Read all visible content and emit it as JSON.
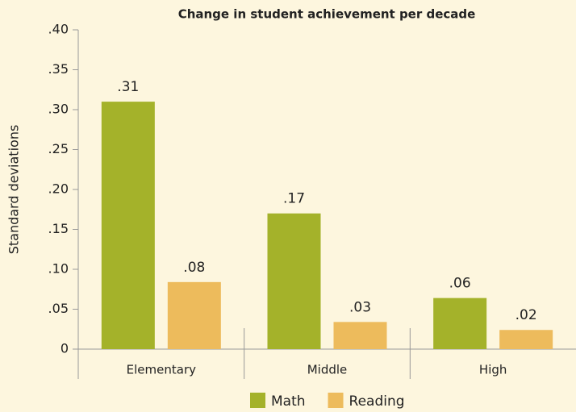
{
  "chart_data": {
    "type": "bar",
    "title": "Change in student achievement per decade",
    "y_label": "Standard deviations",
    "categories": [
      "Elementary",
      "Middle",
      "High"
    ],
    "series": [
      {
        "name": "Math",
        "color": "#a4b22a",
        "values": [
          0.31,
          0.17,
          0.064
        ],
        "value_labels": [
          ".31",
          ".17",
          ".06"
        ]
      },
      {
        "name": "Reading",
        "color": "#edbb5c",
        "values": [
          0.084,
          0.034,
          0.024
        ],
        "value_labels": [
          ".08",
          ".03",
          ".02"
        ]
      }
    ],
    "ylim": [
      0,
      0.4
    ],
    "yticks": [
      0,
      {
        "value": 0.05,
        "label": ".05"
      },
      {
        "value": 0.1,
        "label": ".10"
      },
      {
        "value": 0.15,
        "label": ".15"
      },
      {
        "value": 0.2,
        "label": ".20"
      },
      {
        "value": 0.25,
        "label": ".25"
      },
      {
        "value": 0.3,
        "label": ".30"
      },
      {
        "value": 0.35,
        "label": ".35"
      },
      {
        "value": 0.4,
        "label": ".40"
      }
    ]
  }
}
